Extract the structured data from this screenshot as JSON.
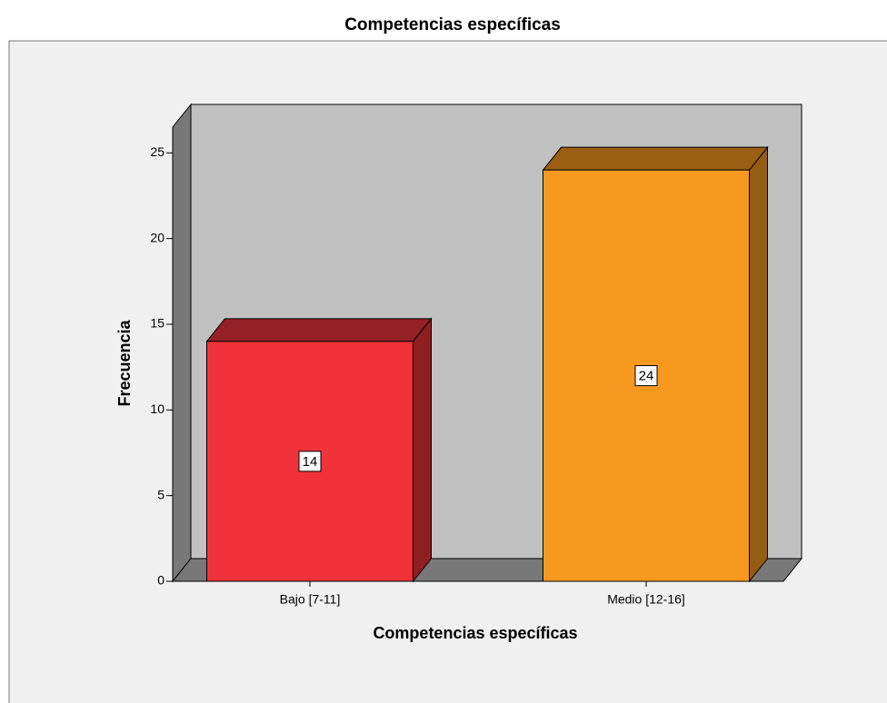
{
  "chart_data": {
    "type": "bar",
    "title": "Competencias específicas",
    "x_label": "Competencias específicas",
    "y_label": "Frecuencia",
    "categories": [
      "Bajo [7-11]",
      "Medio [12-16]"
    ],
    "values": [
      14,
      24
    ],
    "colors": [
      "#f0333b",
      "#f8991f"
    ],
    "ylim": [
      0,
      26.5
    ],
    "yticks": [
      0,
      5,
      10,
      15,
      20,
      25
    ]
  }
}
